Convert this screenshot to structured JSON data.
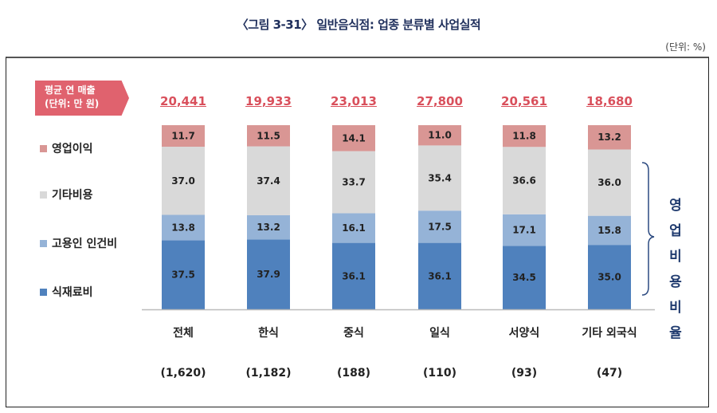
{
  "title": "〈그림 3-31〉 일반음식점: 업종 분류별 사업실적",
  "unit_note": "(단위: %)",
  "revenue_badge": {
    "line1": "평균 연 매출",
    "line2": "(단위: 만 원)"
  },
  "brace_label": [
    "영업",
    "비용",
    "비율"
  ],
  "colors": {
    "profit": "#d99694",
    "other": "#d9d9d9",
    "labor": "#95b3d7",
    "food": "#4f81bd",
    "revenue": "#d9505c"
  },
  "chart_data": {
    "type": "bar",
    "stacked": true,
    "categories": [
      "전체",
      "한식",
      "중식",
      "일식",
      "서양식",
      "기타 외국식"
    ],
    "counts": [
      "(1,620)",
      "(1,182)",
      "(188)",
      "(110)",
      "(93)",
      "(47)"
    ],
    "revenue": [
      "20,441",
      "19,933",
      "23,013",
      "27,800",
      "20,561",
      "18,680"
    ],
    "legend_placement": "left",
    "series": [
      {
        "name": "식재료비",
        "key": "food",
        "values": [
          37.5,
          37.9,
          36.1,
          36.1,
          34.5,
          35.0
        ]
      },
      {
        "name": "고용인 인건비",
        "key": "labor",
        "values": [
          13.8,
          13.2,
          16.1,
          17.5,
          17.1,
          15.8
        ]
      },
      {
        "name": "기타비용",
        "key": "other",
        "values": [
          37.0,
          37.4,
          33.7,
          35.4,
          36.6,
          36.0
        ]
      },
      {
        "name": "영업이익",
        "key": "profit",
        "values": [
          11.7,
          11.5,
          14.1,
          11.0,
          11.8,
          13.2
        ]
      }
    ]
  }
}
